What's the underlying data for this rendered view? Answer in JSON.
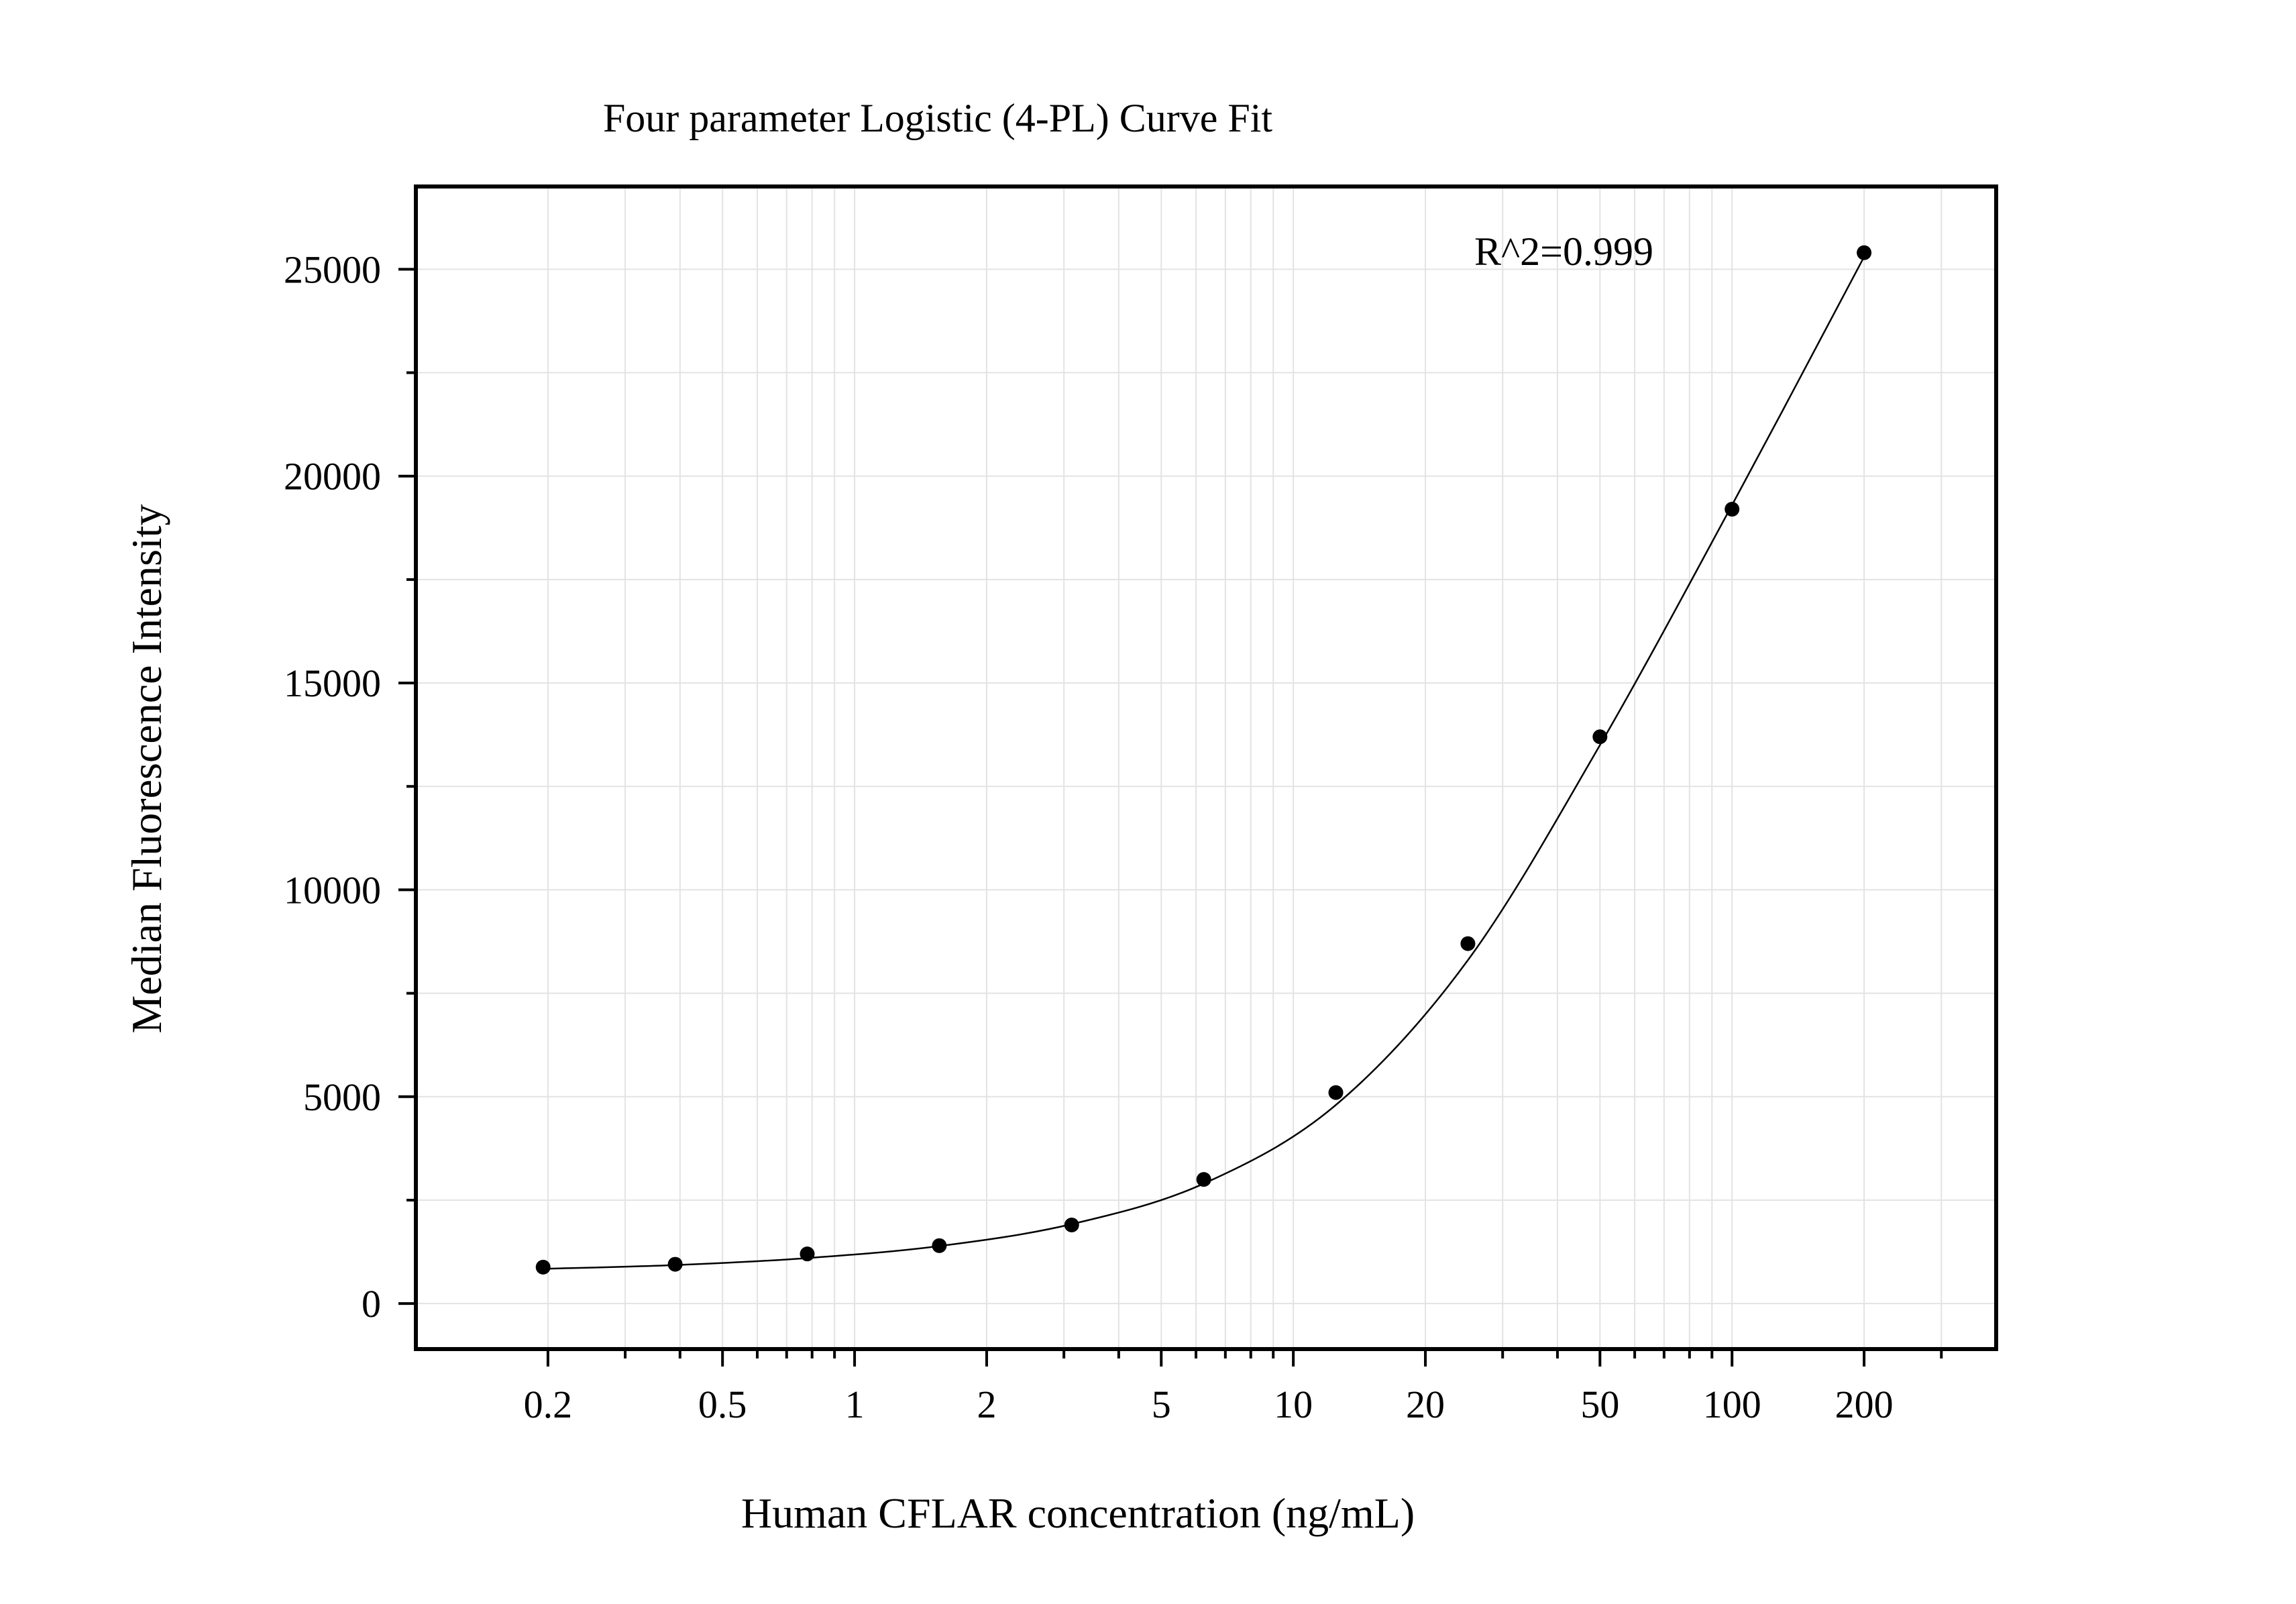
{
  "chart_data": {
    "type": "scatter",
    "title": "Four parameter Logistic (4-PL) Curve Fit",
    "xlabel": "Human CFLAR concentration (ng/mL)",
    "ylabel": "Median Fluorescence Intensity",
    "x_scale": "log",
    "xlim": [
      0.1,
      400
    ],
    "ylim": [
      -1100,
      27000
    ],
    "x_ticks": [
      0.2,
      0.5,
      1,
      2,
      5,
      10,
      20,
      50,
      100,
      200
    ],
    "x_tick_labels": [
      "0.2",
      "0.5",
      "1",
      "2",
      "5",
      "10",
      "20",
      "50",
      "100",
      "200"
    ],
    "y_ticks": [
      0,
      5000,
      10000,
      15000,
      20000,
      25000
    ],
    "y_tick_labels": [
      "0",
      "5000",
      "10000",
      "15000",
      "20000",
      "25000"
    ],
    "grid": true,
    "annotation": "R^2=0.999",
    "series": [
      {
        "x": [
          0.195,
          0.39,
          0.78,
          1.56,
          3.125,
          6.25,
          12.5,
          25,
          50,
          100,
          200
        ],
        "y": [
          880,
          950,
          1200,
          1400,
          1900,
          3000,
          5100,
          8700,
          13700,
          19200,
          25400
        ]
      }
    ],
    "fit": {
      "model": "4-PL",
      "x": [
        0.195,
        0.39,
        0.78,
        1.56,
        3.125,
        6.25,
        12.5,
        25,
        50,
        100,
        200
      ],
      "y": [
        840,
        930,
        1100,
        1390,
        1920,
        2900,
        4800,
        8300,
        13500,
        19300,
        25300
      ]
    }
  }
}
